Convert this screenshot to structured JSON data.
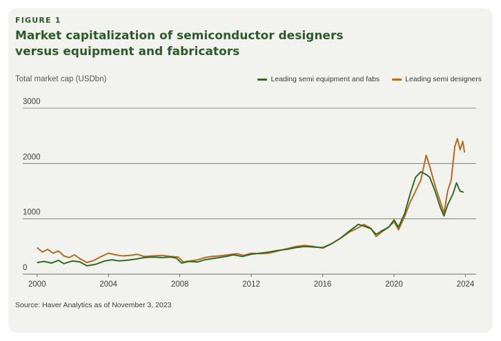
{
  "figure_label": "FIGURE 1",
  "title_line1": "Market capitalization of semiconductor designers",
  "title_line2": "versus equipment and fabricators",
  "source": "Source: Haver Analytics as of November 3, 2023",
  "colors": {
    "background_card": "#f2f3ee",
    "title": "#2e5a2a",
    "equipment": "#2f6a22",
    "designers": "#b66a1c",
    "grid": "#6b6f68"
  },
  "chart_data": {
    "type": "line",
    "ylabel": "Total market cap (USDbn)",
    "xlim": [
      1999.2,
      2024.6
    ],
    "ylim": [
      0,
      3000
    ],
    "yticks": [
      "0",
      "1000",
      "2000",
      "3000"
    ],
    "xticks": [
      "2000",
      "2004",
      "2008",
      "2012",
      "2016",
      "2020",
      "2024"
    ],
    "legend_position": "top-right",
    "grid": true,
    "series": [
      {
        "name": "Leading semi equipment and fabs",
        "color": "#2f6a22",
        "points": [
          [
            2000.0,
            210
          ],
          [
            2000.4,
            230
          ],
          [
            2000.8,
            200
          ],
          [
            2001.2,
            250
          ],
          [
            2001.5,
            190
          ],
          [
            2002.0,
            240
          ],
          [
            2002.4,
            220
          ],
          [
            2002.8,
            150
          ],
          [
            2003.3,
            180
          ],
          [
            2003.8,
            240
          ],
          [
            2004.2,
            260
          ],
          [
            2004.6,
            240
          ],
          [
            2005.0,
            250
          ],
          [
            2005.5,
            270
          ],
          [
            2006.0,
            300
          ],
          [
            2006.5,
            310
          ],
          [
            2007.0,
            300
          ],
          [
            2007.5,
            310
          ],
          [
            2007.8,
            290
          ],
          [
            2008.1,
            200
          ],
          [
            2008.5,
            230
          ],
          [
            2009.0,
            220
          ],
          [
            2009.4,
            260
          ],
          [
            2009.8,
            280
          ],
          [
            2010.2,
            300
          ],
          [
            2010.6,
            320
          ],
          [
            2011.0,
            350
          ],
          [
            2011.5,
            320
          ],
          [
            2012.0,
            360
          ],
          [
            2012.5,
            380
          ],
          [
            2013.0,
            400
          ],
          [
            2013.5,
            430
          ],
          [
            2014.0,
            450
          ],
          [
            2014.5,
            480
          ],
          [
            2015.0,
            500
          ],
          [
            2015.5,
            490
          ],
          [
            2016.0,
            480
          ],
          [
            2016.5,
            550
          ],
          [
            2017.0,
            650
          ],
          [
            2017.5,
            780
          ],
          [
            2018.0,
            900
          ],
          [
            2018.3,
            870
          ],
          [
            2018.7,
            820
          ],
          [
            2019.0,
            720
          ],
          [
            2019.3,
            780
          ],
          [
            2019.7,
            850
          ],
          [
            2020.0,
            980
          ],
          [
            2020.25,
            850
          ],
          [
            2020.6,
            1100
          ],
          [
            2020.9,
            1450
          ],
          [
            2021.2,
            1750
          ],
          [
            2021.5,
            1850
          ],
          [
            2021.8,
            1800
          ],
          [
            2022.0,
            1750
          ],
          [
            2022.3,
            1500
          ],
          [
            2022.6,
            1200
          ],
          [
            2022.8,
            1050
          ],
          [
            2023.0,
            1250
          ],
          [
            2023.3,
            1450
          ],
          [
            2023.5,
            1650
          ],
          [
            2023.7,
            1500
          ],
          [
            2023.9,
            1480
          ]
        ]
      },
      {
        "name": "Leading semi designers",
        "color": "#b66a1c",
        "points": [
          [
            2000.0,
            480
          ],
          [
            2000.3,
            400
          ],
          [
            2000.6,
            450
          ],
          [
            2000.9,
            380
          ],
          [
            2001.2,
            420
          ],
          [
            2001.5,
            330
          ],
          [
            2001.8,
            300
          ],
          [
            2002.1,
            350
          ],
          [
            2002.4,
            280
          ],
          [
            2002.8,
            210
          ],
          [
            2003.2,
            250
          ],
          [
            2003.6,
            320
          ],
          [
            2004.0,
            380
          ],
          [
            2004.4,
            350
          ],
          [
            2004.8,
            330
          ],
          [
            2005.2,
            340
          ],
          [
            2005.6,
            360
          ],
          [
            2006.0,
            320
          ],
          [
            2006.5,
            330
          ],
          [
            2007.0,
            340
          ],
          [
            2007.5,
            320
          ],
          [
            2007.9,
            310
          ],
          [
            2008.2,
            220
          ],
          [
            2008.6,
            240
          ],
          [
            2009.0,
            260
          ],
          [
            2009.4,
            300
          ],
          [
            2009.8,
            320
          ],
          [
            2010.2,
            330
          ],
          [
            2010.7,
            350
          ],
          [
            2011.2,
            370
          ],
          [
            2011.6,
            340
          ],
          [
            2012.0,
            380
          ],
          [
            2012.5,
            370
          ],
          [
            2013.0,
            380
          ],
          [
            2013.5,
            420
          ],
          [
            2014.0,
            460
          ],
          [
            2014.5,
            500
          ],
          [
            2015.0,
            520
          ],
          [
            2015.5,
            500
          ],
          [
            2016.0,
            470
          ],
          [
            2016.5,
            550
          ],
          [
            2017.0,
            650
          ],
          [
            2017.5,
            760
          ],
          [
            2018.0,
            840
          ],
          [
            2018.3,
            900
          ],
          [
            2018.7,
            830
          ],
          [
            2019.0,
            680
          ],
          [
            2019.3,
            760
          ],
          [
            2019.7,
            850
          ],
          [
            2020.0,
            950
          ],
          [
            2020.25,
            800
          ],
          [
            2020.6,
            1050
          ],
          [
            2020.9,
            1300
          ],
          [
            2021.2,
            1500
          ],
          [
            2021.5,
            1700
          ],
          [
            2021.8,
            2150
          ],
          [
            2022.0,
            1950
          ],
          [
            2022.3,
            1600
          ],
          [
            2022.6,
            1300
          ],
          [
            2022.8,
            1100
          ],
          [
            2023.0,
            1500
          ],
          [
            2023.2,
            1700
          ],
          [
            2023.4,
            2300
          ],
          [
            2023.55,
            2450
          ],
          [
            2023.7,
            2250
          ],
          [
            2023.85,
            2400
          ],
          [
            2023.95,
            2200
          ]
        ]
      }
    ]
  }
}
